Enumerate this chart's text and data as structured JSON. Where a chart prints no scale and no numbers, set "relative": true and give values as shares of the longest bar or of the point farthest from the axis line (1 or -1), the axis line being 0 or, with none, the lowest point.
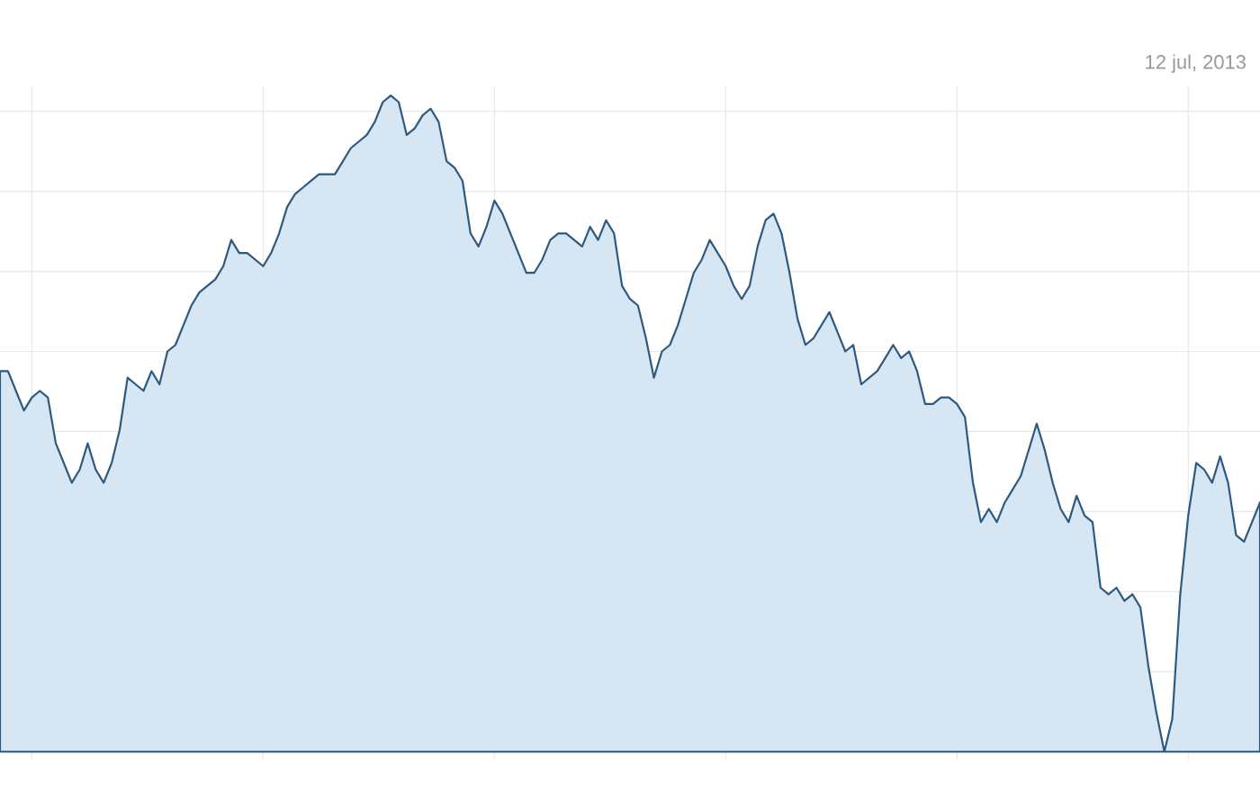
{
  "chart_data": {
    "type": "area",
    "relative": true,
    "grid": true,
    "color": "#2d5a80",
    "annotations": [
      "12 jul, 2013"
    ],
    "categories": [
      null,
      null,
      null,
      null,
      null,
      null,
      null,
      null,
      null,
      null,
      null,
      null,
      null,
      null,
      null,
      null,
      null,
      null,
      null,
      null,
      null,
      null,
      null,
      null,
      null,
      null,
      null,
      null,
      null,
      null,
      null,
      null,
      null,
      null,
      null,
      null,
      null,
      null,
      null,
      null,
      null,
      null,
      null,
      null,
      null,
      null,
      null,
      null,
      null,
      null,
      null,
      null,
      null,
      null,
      null,
      null,
      null,
      null,
      null,
      null,
      null,
      null,
      null,
      null,
      null,
      null,
      null,
      null,
      null,
      null,
      null,
      null,
      null,
      null,
      null,
      null,
      null,
      null,
      null,
      null,
      null,
      null,
      null,
      null,
      null,
      null,
      null,
      null,
      null,
      null,
      null,
      null,
      null,
      null,
      null,
      null,
      null,
      null,
      null,
      null,
      null,
      null,
      null,
      null,
      null,
      null,
      null,
      null,
      null,
      null,
      null,
      null,
      null,
      null,
      null,
      null,
      null,
      null,
      null,
      null,
      null,
      null,
      null,
      null,
      null,
      null,
      null,
      null,
      null,
      null,
      null,
      null,
      null,
      null,
      null,
      null,
      null,
      null,
      null,
      null,
      null,
      null,
      null,
      null,
      null,
      null,
      null,
      null,
      null,
      null,
      null,
      null,
      null,
      null,
      null,
      null,
      null,
      null,
      null
    ],
    "values": [
      0.58,
      0.58,
      0.55,
      0.52,
      0.54,
      0.55,
      0.54,
      0.47,
      0.44,
      0.41,
      0.43,
      0.47,
      0.43,
      0.41,
      0.44,
      0.49,
      0.57,
      0.56,
      0.55,
      0.58,
      0.56,
      0.61,
      0.62,
      0.65,
      0.68,
      0.7,
      0.71,
      0.72,
      0.74,
      0.78,
      0.76,
      0.76,
      0.75,
      0.74,
      0.76,
      0.79,
      0.83,
      0.85,
      0.86,
      0.87,
      0.88,
      0.88,
      0.88,
      0.9,
      0.92,
      0.93,
      0.94,
      0.96,
      0.99,
      1.0,
      0.99,
      0.94,
      0.95,
      0.97,
      0.98,
      0.96,
      0.9,
      0.89,
      0.87,
      0.79,
      0.77,
      0.8,
      0.84,
      0.82,
      0.79,
      0.76,
      0.73,
      0.73,
      0.75,
      0.78,
      0.79,
      0.79,
      0.78,
      0.77,
      0.8,
      0.78,
      0.81,
      0.79,
      0.71,
      0.69,
      0.68,
      0.63,
      0.57,
      0.61,
      0.62,
      0.65,
      0.69,
      0.73,
      0.75,
      0.78,
      0.76,
      0.74,
      0.71,
      0.69,
      0.71,
      0.77,
      0.81,
      0.82,
      0.79,
      0.73,
      0.66,
      0.62,
      0.63,
      0.65,
      0.67,
      0.64,
      0.61,
      0.62,
      0.56,
      0.57,
      0.58,
      0.6,
      0.62,
      0.6,
      0.61,
      0.58,
      0.53,
      0.53,
      0.54,
      0.54,
      0.53,
      0.51,
      0.41,
      0.35,
      0.37,
      0.35,
      0.38,
      0.4,
      0.42,
      0.46,
      0.5,
      0.46,
      0.41,
      0.37,
      0.35,
      0.39,
      0.36,
      0.35,
      0.25,
      0.24,
      0.25,
      0.23,
      0.24,
      0.22,
      0.13,
      0.06,
      0,
      0.05,
      0.24,
      0.36,
      0.44,
      0.43,
      0.41,
      0.45,
      0.41,
      0.33,
      0.32,
      0.35,
      0.38
    ]
  }
}
